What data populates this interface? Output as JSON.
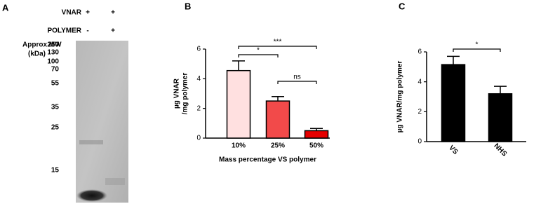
{
  "gel": {
    "panel": "A",
    "rows": [
      {
        "label": "VNAR",
        "lanes": [
          "+",
          "+"
        ]
      },
      {
        "label": "POLYMER",
        "lanes": [
          "-",
          "+"
        ]
      }
    ],
    "mw_title": [
      "Approx MW",
      "(kDa)"
    ],
    "mw_markers": [
      "250",
      "130",
      "100",
      "70",
      "55",
      "35",
      "25",
      "15"
    ]
  },
  "chart_data": [
    {
      "type": "bar",
      "panel": "B",
      "ylabel": [
        "µg VNAR",
        "/mg polymer"
      ],
      "xlabel": "Mass percentage VS polymer",
      "categories": [
        "10%",
        "25%",
        "50%"
      ],
      "values": [
        4.55,
        2.5,
        0.5
      ],
      "errors": [
        0.65,
        0.3,
        0.15
      ],
      "colors": [
        "#ffe0e0",
        "#f24a4a",
        "#e60000"
      ],
      "ylim": [
        0,
        6
      ],
      "yticks": [
        0,
        2,
        4,
        6
      ],
      "significance": [
        {
          "between": [
            "10%",
            "25%"
          ],
          "label": "*"
        },
        {
          "between": [
            "10%",
            "50%"
          ],
          "label": "***"
        },
        {
          "between": [
            "25%",
            "50%"
          ],
          "label": "ns"
        }
      ]
    },
    {
      "type": "bar",
      "panel": "C",
      "ylabel": [
        "µg VNAR/mg polymer"
      ],
      "categories": [
        "VS",
        "NHS"
      ],
      "values": [
        5.15,
        3.2
      ],
      "errors": [
        0.55,
        0.5
      ],
      "colors": [
        "#000000",
        "#000000"
      ],
      "ylim": [
        0,
        6
      ],
      "yticks": [
        0,
        2,
        4,
        6
      ],
      "significance": [
        {
          "between": [
            "VS",
            "NHS"
          ],
          "label": "*"
        }
      ]
    }
  ]
}
